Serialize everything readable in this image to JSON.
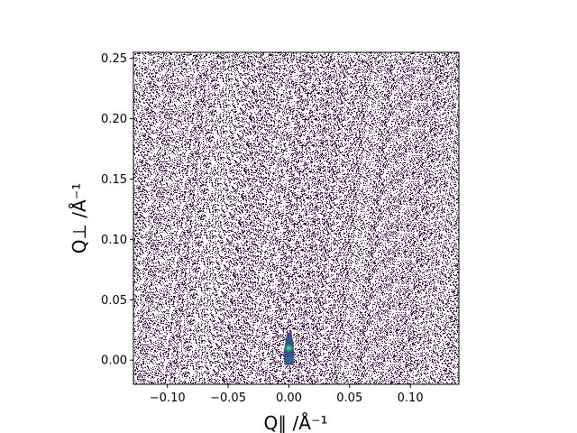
{
  "chart_data": {
    "type": "heatmap",
    "title": "",
    "xlabel": "Q∥ /Å⁻¹",
    "ylabel": "Q⊥ /Å⁻¹",
    "xlim": [
      -0.128,
      0.14
    ],
    "ylim": [
      -0.02,
      0.255
    ],
    "xticks": [
      -0.1,
      -0.05,
      0.0,
      0.05,
      0.1
    ],
    "xtick_labels": [
      "−0.10",
      "−0.05",
      "0.00",
      "0.05",
      "0.10"
    ],
    "yticks": [
      0.0,
      0.05,
      0.1,
      0.15,
      0.2,
      0.25
    ],
    "ytick_labels": [
      "0.00",
      "0.05",
      "0.10",
      "0.15",
      "0.20",
      "0.25"
    ],
    "grid": false,
    "colormap": "viridis",
    "background_intensity_color": "#440154",
    "peaks": [
      {
        "x": 0.0,
        "y": 0.01,
        "color": "#21a685"
      },
      {
        "x": 0.0,
        "y": 0.0,
        "color": "#31688e"
      },
      {
        "x": 0.0,
        "y": 0.017,
        "color": "#3b528b"
      }
    ]
  }
}
